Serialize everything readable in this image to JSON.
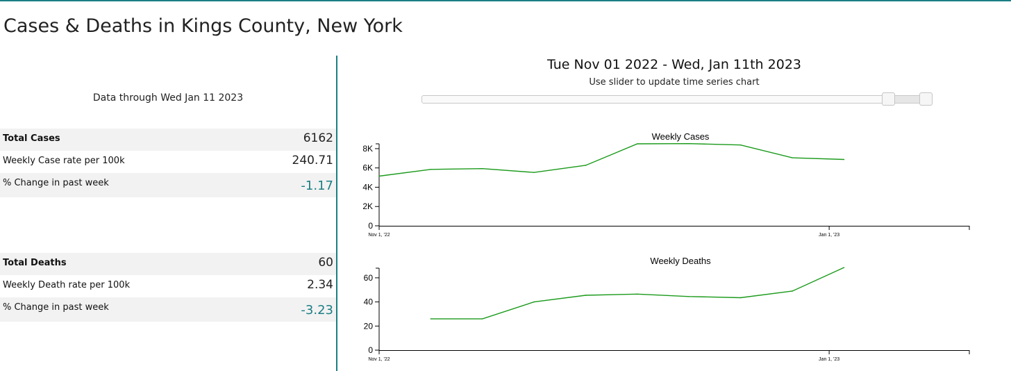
{
  "page": {
    "title": "Cases & Deaths in Kings County, New York",
    "data_through": "Data through Wed Jan 11 2023"
  },
  "cases_table": [
    {
      "label": "Total Cases",
      "value": "6162"
    },
    {
      "label": "Weekly Case rate per 100k",
      "value": "240.71"
    },
    {
      "label": "% Change in past week",
      "value": "-1.17"
    }
  ],
  "deaths_table": [
    {
      "label": "Total Deaths",
      "value": "60"
    },
    {
      "label": "Weekly Death rate per 100k",
      "value": "2.34"
    },
    {
      "label": "% Change in past week",
      "value": "-3.23"
    }
  ],
  "range": {
    "title": "Tue Nov 01 2022 - Wed, Jan 11th 2023",
    "hint": "Use slider to update time series chart",
    "selected_start_fraction": 0.925,
    "selected_end_fraction": 1.0
  },
  "colors": {
    "accent": "#1b7e84",
    "line": "#1a9a1a"
  },
  "chart_data": [
    {
      "type": "line",
      "title": "Weekly Cases",
      "xlabel": "",
      "ylabel": "",
      "x_domain": [
        "2022-11-01",
        "2023-01-20"
      ],
      "ylim": [
        0,
        8500
      ],
      "y_ticks": [
        0,
        2000,
        4000,
        6000,
        8000
      ],
      "y_tick_labels": [
        "0",
        "2K",
        "4K",
        "6K",
        "8K"
      ],
      "x_ticks": [
        "2022-11-01",
        "2023-01-01"
      ],
      "x_tick_labels": [
        "Nov 1, '22",
        "Jan 1, '23"
      ],
      "grid": false,
      "legend": "none",
      "series": [
        {
          "x": [
            "2022-11-01",
            "2022-11-08",
            "2022-11-15",
            "2022-11-22",
            "2022-11-29",
            "2022-12-06",
            "2022-12-13",
            "2022-12-20",
            "2022-12-27",
            "2023-01-03"
          ],
          "values": [
            5150,
            5850,
            5930,
            5530,
            6270,
            8500,
            8520,
            8380,
            7050,
            6880
          ]
        }
      ]
    },
    {
      "type": "line",
      "title": "Weekly Deaths",
      "xlabel": "",
      "ylabel": "",
      "x_domain": [
        "2022-11-01",
        "2023-01-20"
      ],
      "ylim": [
        0,
        68
      ],
      "y_ticks": [
        0,
        20,
        40,
        60
      ],
      "y_tick_labels": [
        "0",
        "20",
        "40",
        "60"
      ],
      "x_ticks": [
        "2022-11-01",
        "2023-01-01"
      ],
      "x_tick_labels": [
        "Nov 1, '22",
        "Jan 1, '23"
      ],
      "grid": false,
      "legend": "none",
      "series": [
        {
          "x": [
            "2022-11-08",
            "2022-11-15",
            "2022-11-22",
            "2022-11-29",
            "2022-12-06",
            "2022-12-13",
            "2022-12-20",
            "2022-12-27",
            "2023-01-03"
          ],
          "values": [
            26,
            26,
            40,
            45.5,
            46.5,
            44.5,
            43.5,
            49,
            68.5
          ]
        }
      ]
    }
  ]
}
